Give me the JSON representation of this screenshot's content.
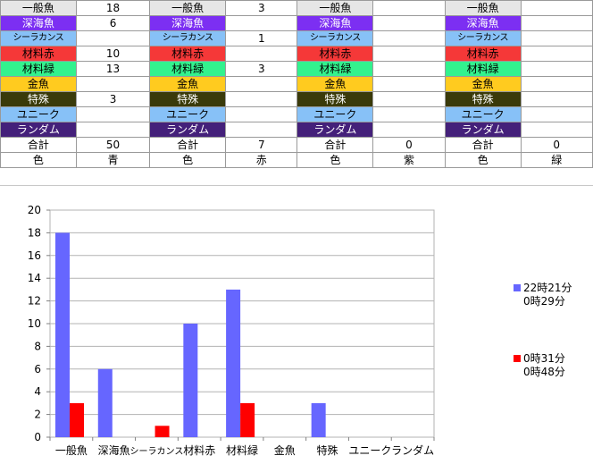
{
  "table": {
    "columns": 4,
    "row_labels": [
      "一般魚",
      "深海魚",
      "シーラカンス",
      "材料赤",
      "材料緑",
      "金魚",
      "特殊",
      "ユニーク",
      "ランダム",
      "合計",
      "色"
    ],
    "row_colors": [
      "#e6e6e6",
      "#7c2ff2",
      "#87c1f7",
      "#f53838",
      "#33f28e",
      "#ffcb1f",
      "#3a3a0a",
      "#87c1f7",
      "#44207a",
      "#ffffff",
      "#ffffff"
    ],
    "row_text_colors": [
      "#000000",
      "#ffffff",
      "#000000",
      "#000000",
      "#000000",
      "#000000",
      "#ffffff",
      "#000000",
      "#ffffff",
      "#000000",
      "#000000"
    ],
    "values": [
      [
        "18",
        "6",
        "",
        "10",
        "13",
        "",
        "3",
        "",
        "",
        "50",
        "青"
      ],
      [
        "3",
        "",
        "1",
        "",
        "3",
        "",
        "",
        "",
        "",
        "7",
        "赤"
      ],
      [
        "",
        "",
        "",
        "",
        "",
        "",
        "",
        "",
        "",
        "0",
        "紫"
      ],
      [
        "",
        "",
        "",
        "",
        "",
        "",
        "",
        "",
        "",
        "0",
        "緑"
      ]
    ]
  },
  "chart_data": {
    "type": "bar",
    "categories": [
      "一般魚",
      "深海魚",
      "シーラカンス",
      "材料赤",
      "材料緑",
      "金魚",
      "特殊",
      "ユニーク",
      "ランダム"
    ],
    "series": [
      {
        "name": "22時21分\n0時29分",
        "color": "#6666ff",
        "values": [
          18,
          6,
          0,
          10,
          13,
          0,
          3,
          0,
          0
        ]
      },
      {
        "name": "0時31分\n0時48分",
        "color": "#ff0000",
        "values": [
          3,
          0,
          1,
          0,
          3,
          0,
          0,
          0,
          0
        ]
      }
    ],
    "ylim": [
      0,
      20
    ],
    "yticks": [
      0,
      2,
      4,
      6,
      8,
      10,
      12,
      14,
      16,
      18,
      20
    ],
    "grid": true,
    "legend_position": "right"
  }
}
